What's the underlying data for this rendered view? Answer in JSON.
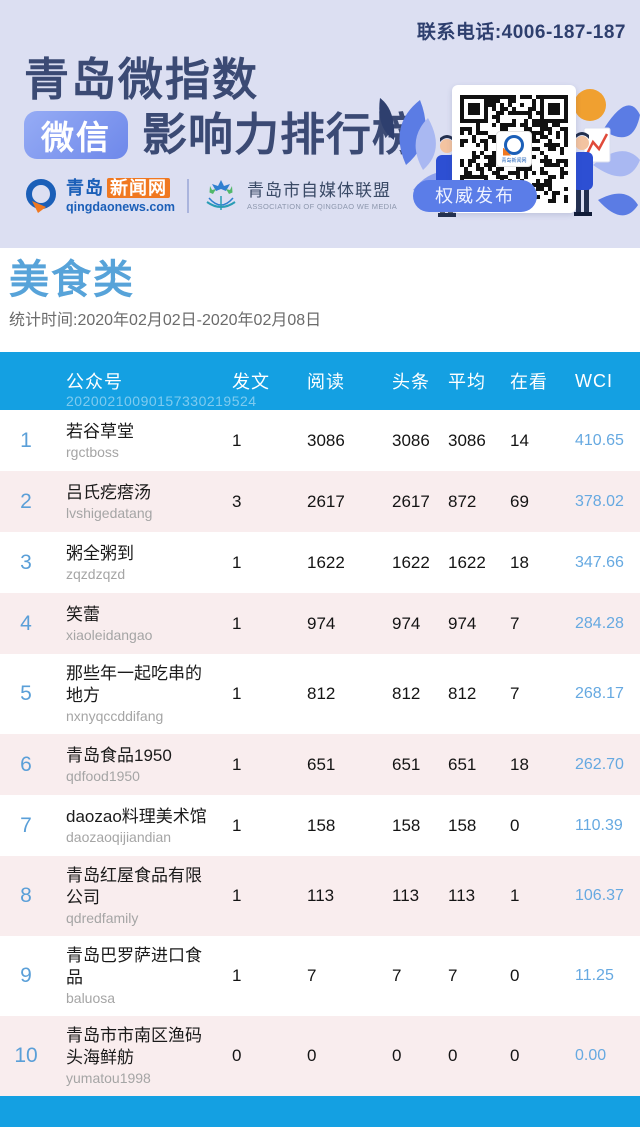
{
  "header": {
    "phone": "联系电话:4006-187-187",
    "title_line1": "青岛微指数",
    "badge": "微信",
    "title_line2": "影响力排行榜",
    "news_logo": {
      "name_part1": "青岛",
      "name_part2": "新闻网",
      "domain": "qingdaonews.com"
    },
    "association_logo": {
      "name": "青岛市自媒体联盟",
      "subtitle": "ASSOCIATION OF QINGDAO WE MEDIA"
    },
    "auth_badge": "权威发布",
    "qr_center_text": "青岛新闻网"
  },
  "section": {
    "category": "美食类",
    "date_range": "统计时间:2020年02月02日-2020年02月08日"
  },
  "table": {
    "watermark": "20200210090157330219524",
    "columns": [
      "公众号",
      "发文",
      "阅读",
      "头条",
      "平均",
      "在看",
      "WCI"
    ],
    "rows": [
      {
        "rank": "1",
        "name": "若谷草堂",
        "id": "rgctboss",
        "posts": "1",
        "reads": "3086",
        "headline": "3086",
        "avg": "3086",
        "looks": "14",
        "wci": "410.65"
      },
      {
        "rank": "2",
        "name": "吕氏疙瘩汤",
        "id": "lvshigedatang",
        "posts": "3",
        "reads": "2617",
        "headline": "2617",
        "avg": "872",
        "looks": "69",
        "wci": "378.02"
      },
      {
        "rank": "3",
        "name": "粥全粥到",
        "id": "zqzdzqzd",
        "posts": "1",
        "reads": "1622",
        "headline": "1622",
        "avg": "1622",
        "looks": "18",
        "wci": "347.66"
      },
      {
        "rank": "4",
        "name": "笑蕾",
        "id": "xiaoleidangao",
        "posts": "1",
        "reads": "974",
        "headline": "974",
        "avg": "974",
        "looks": "7",
        "wci": "284.28"
      },
      {
        "rank": "5",
        "name": "那些年一起吃串的地方",
        "id": "nxnyqccddifang",
        "posts": "1",
        "reads": "812",
        "headline": "812",
        "avg": "812",
        "looks": "7",
        "wci": "268.17"
      },
      {
        "rank": "6",
        "name": "青岛食品1950",
        "id": "qdfood1950",
        "posts": "1",
        "reads": "651",
        "headline": "651",
        "avg": "651",
        "looks": "18",
        "wci": "262.70"
      },
      {
        "rank": "7",
        "name": "daozao料理美术馆",
        "id": "daozaoqijiandian",
        "posts": "1",
        "reads": "158",
        "headline": "158",
        "avg": "158",
        "looks": "0",
        "wci": "110.39"
      },
      {
        "rank": "8",
        "name": "青岛红屋食品有限公司",
        "id": "qdredfamily",
        "posts": "1",
        "reads": "113",
        "headline": "113",
        "avg": "113",
        "looks": "1",
        "wci": "106.37"
      },
      {
        "rank": "9",
        "name": "青岛巴罗萨进口食品",
        "id": "baluosa",
        "posts": "1",
        "reads": "7",
        "headline": "7",
        "avg": "7",
        "looks": "0",
        "wci": "11.25"
      },
      {
        "rank": "10",
        "name": "青岛市市南区渔码头海鲜舫",
        "id": "yumatou1998",
        "posts": "0",
        "reads": "0",
        "headline": "0",
        "avg": "0",
        "looks": "0",
        "wci": "0.00"
      }
    ]
  },
  "colors": {
    "hero_bg": "#dcdff2",
    "title_navy": "#3b4a74",
    "badge_blue": "#6e88ea",
    "table_blue": "#14a0e2",
    "row_pink": "#f9edee",
    "category_blue": "#57a3d9",
    "wci_blue": "#66a9e1",
    "news_orange": "#f07820",
    "news_blue": "#1b5fb8"
  }
}
